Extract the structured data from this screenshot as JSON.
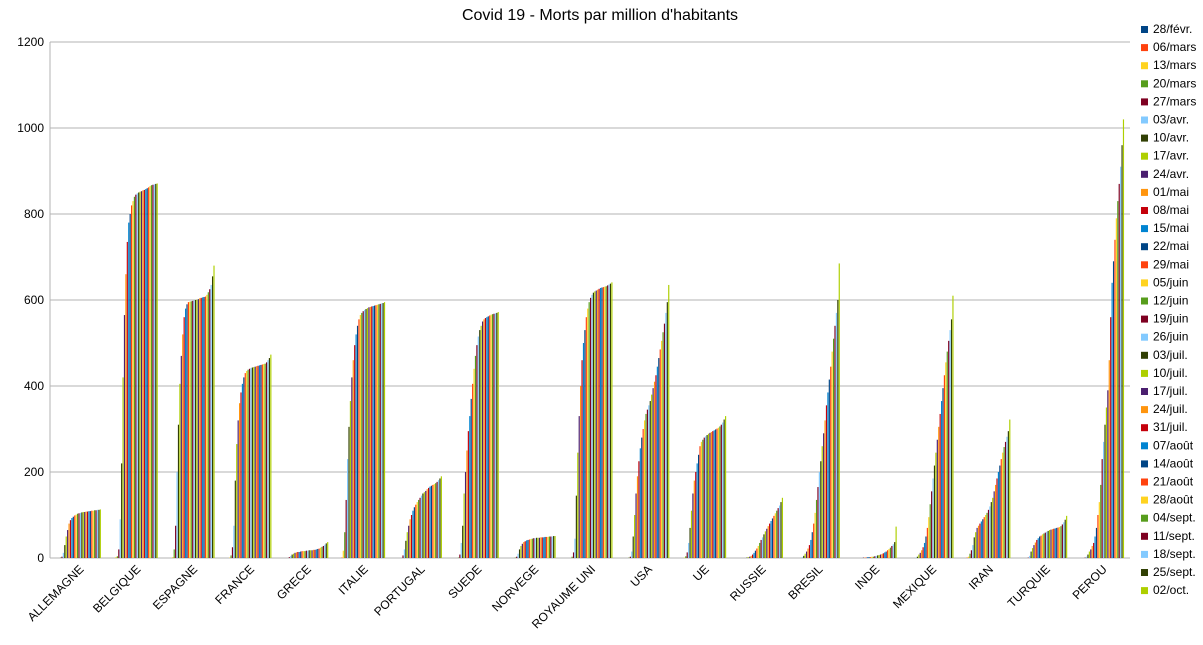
{
  "chart_data": {
    "type": "bar",
    "title": "Covid 19 - Morts par million d'habitants",
    "ylim": [
      0,
      1200
    ],
    "yticks": [
      0,
      200,
      400,
      600,
      800,
      1000,
      1200
    ],
    "grid": true,
    "legend_position": "right",
    "categories": [
      "ALLEMAGNE",
      "BELGIQUE",
      "ESPAGNE",
      "FRANCE",
      "GRECE",
      "ITALIE",
      "PORTUGAL",
      "SUEDE",
      "NORVEGE",
      "ROYAUME UNI",
      "USA",
      "UE",
      "RUSSIE",
      "BRESIL",
      "INDE",
      "MEXIQUE",
      "IRAN",
      "TURQUIE",
      "PEROU"
    ],
    "series": [
      {
        "name": "28/févr.",
        "color": "#004586",
        "values": [
          0,
          0,
          0,
          0,
          0,
          0,
          0,
          0,
          0,
          0,
          0,
          0,
          0,
          0,
          0,
          0,
          0,
          0,
          0
        ]
      },
      {
        "name": "06/mars",
        "color": "#ff420e",
        "values": [
          0,
          0,
          0,
          0,
          0,
          1,
          0,
          0,
          0,
          0,
          0,
          0,
          0,
          0,
          0,
          0,
          1,
          0,
          0
        ]
      },
      {
        "name": "13/mars",
        "color": "#ffd320",
        "values": [
          0,
          2,
          2,
          1,
          0,
          17,
          0,
          0,
          0,
          0,
          0,
          1,
          0,
          0,
          0,
          0,
          3,
          0,
          0
        ]
      },
      {
        "name": "20/mars",
        "color": "#579d1c",
        "values": [
          1,
          4,
          20,
          6,
          0,
          60,
          0,
          1,
          1,
          3,
          1,
          4,
          0,
          0,
          0,
          0,
          10,
          0,
          0
        ]
      },
      {
        "name": "27/mars",
        "color": "#7e0021",
        "values": [
          3,
          20,
          75,
          25,
          2,
          135,
          6,
          8,
          3,
          13,
          3,
          13,
          0,
          0,
          0,
          0,
          18,
          1,
          1
        ]
      },
      {
        "name": "03/avr.",
        "color": "#83caff",
        "values": [
          12,
          90,
          200,
          75,
          5,
          230,
          20,
          35,
          10,
          45,
          15,
          35,
          0,
          2,
          0,
          1,
          30,
          5,
          3
        ]
      },
      {
        "name": "10/avr.",
        "color": "#314004",
        "values": [
          30,
          220,
          310,
          180,
          8,
          305,
          40,
          75,
          20,
          145,
          50,
          70,
          1,
          5,
          0,
          3,
          48,
          15,
          8
        ]
      },
      {
        "name": "17/avr.",
        "color": "#aecf00",
        "values": [
          50,
          420,
          405,
          265,
          10,
          365,
          60,
          150,
          28,
          245,
          100,
          110,
          2,
          10,
          0,
          8,
          60,
          23,
          15
        ]
      },
      {
        "name": "24/avr.",
        "color": "#4b1f6f",
        "values": [
          65,
          565,
          470,
          320,
          12,
          420,
          75,
          200,
          33,
          330,
          150,
          150,
          3,
          15,
          1,
          12,
          70,
          30,
          20
        ]
      },
      {
        "name": "01/mai",
        "color": "#ff950e",
        "values": [
          80,
          660,
          520,
          360,
          13,
          460,
          90,
          250,
          37,
          400,
          190,
          180,
          5,
          22,
          1,
          18,
          75,
          36,
          28
        ]
      },
      {
        "name": "08/mai",
        "color": "#c5000b",
        "values": [
          88,
          735,
          560,
          385,
          14,
          495,
          100,
          295,
          39,
          460,
          225,
          200,
          8,
          30,
          1,
          25,
          80,
          42,
          35
        ]
      },
      {
        "name": "15/mai",
        "color": "#0084d1",
        "values": [
          93,
          780,
          580,
          405,
          14,
          520,
          110,
          330,
          41,
          500,
          255,
          220,
          12,
          42,
          2,
          35,
          85,
          46,
          50
        ]
      },
      {
        "name": "22/mai",
        "color": "#004586",
        "values": [
          96,
          800,
          590,
          420,
          15,
          540,
          118,
          370,
          42,
          530,
          280,
          240,
          17,
          60,
          2,
          50,
          90,
          50,
          70
        ]
      },
      {
        "name": "29/mai",
        "color": "#ff420e",
        "values": [
          99,
          820,
          595,
          430,
          16,
          555,
          124,
          405,
          43,
          560,
          300,
          260,
          22,
          80,
          2,
          70,
          95,
          52,
          100
        ]
      },
      {
        "name": "05/juin",
        "color": "#ffd320",
        "values": [
          101,
          830,
          596,
          435,
          16,
          565,
          130,
          440,
          44,
          580,
          320,
          270,
          28,
          105,
          3,
          95,
          100,
          55,
          130
        ]
      },
      {
        "name": "12/juin",
        "color": "#579d1c",
        "values": [
          103,
          840,
          597,
          438,
          16,
          570,
          135,
          470,
          45,
          595,
          335,
          275,
          35,
          135,
          3,
          125,
          105,
          57,
          170
        ]
      },
      {
        "name": "19/juin",
        "color": "#7e0021",
        "values": [
          104,
          845,
          598,
          440,
          17,
          574,
          140,
          495,
          46,
          605,
          345,
          280,
          42,
          165,
          4,
          155,
          112,
          59,
          230
        ]
      },
      {
        "name": "26/juin",
        "color": "#83caff",
        "values": [
          105,
          848,
          599,
          442,
          17,
          577,
          145,
          515,
          46,
          612,
          355,
          283,
          48,
          200,
          5,
          185,
          120,
          61,
          270
        ]
      },
      {
        "name": "03/juil.",
        "color": "#314004",
        "values": [
          106,
          850,
          600,
          443,
          18,
          579,
          150,
          530,
          47,
          617,
          365,
          286,
          55,
          225,
          6,
          215,
          130,
          63,
          310
        ]
      },
      {
        "name": "10/juil.",
        "color": "#aecf00",
        "values": [
          107,
          852,
          601,
          444,
          18,
          581,
          153,
          540,
          47,
          620,
          380,
          289,
          62,
          260,
          7,
          245,
          140,
          65,
          350
        ]
      },
      {
        "name": "17/juil.",
        "color": "#4b1f6f",
        "values": [
          107,
          853,
          602,
          445,
          18,
          583,
          156,
          550,
          47,
          622,
          395,
          291,
          68,
          290,
          8,
          275,
          155,
          66,
          390
        ]
      },
      {
        "name": "24/juil.",
        "color": "#ff950e",
        "values": [
          108,
          855,
          604,
          446,
          19,
          584,
          160,
          555,
          48,
          624,
          410,
          293,
          74,
          320,
          9,
          305,
          170,
          67,
          460
        ]
      },
      {
        "name": "31/juil.",
        "color": "#c5000b",
        "values": [
          108,
          856,
          605,
          447,
          19,
          585,
          163,
          558,
          48,
          626,
          425,
          295,
          80,
          355,
          11,
          335,
          185,
          68,
          560
        ]
      },
      {
        "name": "07/août",
        "color": "#0084d1",
        "values": [
          109,
          858,
          606,
          448,
          20,
          586,
          166,
          560,
          48,
          628,
          445,
          297,
          86,
          385,
          13,
          365,
          200,
          69,
          640
        ]
      },
      {
        "name": "14/août",
        "color": "#004586",
        "values": [
          109,
          860,
          607,
          449,
          21,
          587,
          168,
          562,
          49,
          629,
          465,
          299,
          92,
          415,
          15,
          395,
          215,
          70,
          690
        ]
      },
      {
        "name": "21/août",
        "color": "#ff420e",
        "values": [
          110,
          862,
          608,
          450,
          22,
          588,
          170,
          564,
          49,
          630,
          485,
          301,
          98,
          445,
          18,
          425,
          230,
          71,
          740
        ]
      },
      {
        "name": "28/août",
        "color": "#ffd320",
        "values": [
          110,
          865,
          612,
          451,
          24,
          589,
          172,
          566,
          49,
          631,
          505,
          303,
          104,
          480,
          21,
          455,
          245,
          72,
          790
        ]
      },
      {
        "name": "04/sept.",
        "color": "#579d1c",
        "values": [
          111,
          867,
          618,
          452,
          26,
          590,
          174,
          567,
          50,
          632,
          525,
          306,
          110,
          510,
          24,
          480,
          258,
          74,
          830
        ]
      },
      {
        "name": "11/sept.",
        "color": "#7e0021",
        "values": [
          111,
          868,
          625,
          455,
          28,
          591,
          177,
          568,
          50,
          634,
          545,
          310,
          116,
          540,
          28,
          505,
          270,
          78,
          870
        ]
      },
      {
        "name": "18/sept.",
        "color": "#83caff",
        "values": [
          112,
          869,
          635,
          460,
          31,
          592,
          181,
          569,
          50,
          636,
          570,
          315,
          122,
          570,
          32,
          530,
          282,
          83,
          910
        ]
      },
      {
        "name": "25/sept.",
        "color": "#314004",
        "values": [
          112,
          870,
          655,
          465,
          34,
          593,
          185,
          570,
          51,
          638,
          595,
          322,
          130,
          600,
          37,
          555,
          295,
          89,
          960
        ]
      },
      {
        "name": "02/oct.",
        "color": "#aecf00",
        "values": [
          113,
          871,
          680,
          473,
          37,
          595,
          190,
          572,
          51,
          641,
          635,
          330,
          140,
          685,
          73,
          610,
          322,
          98,
          1020
        ]
      }
    ]
  }
}
